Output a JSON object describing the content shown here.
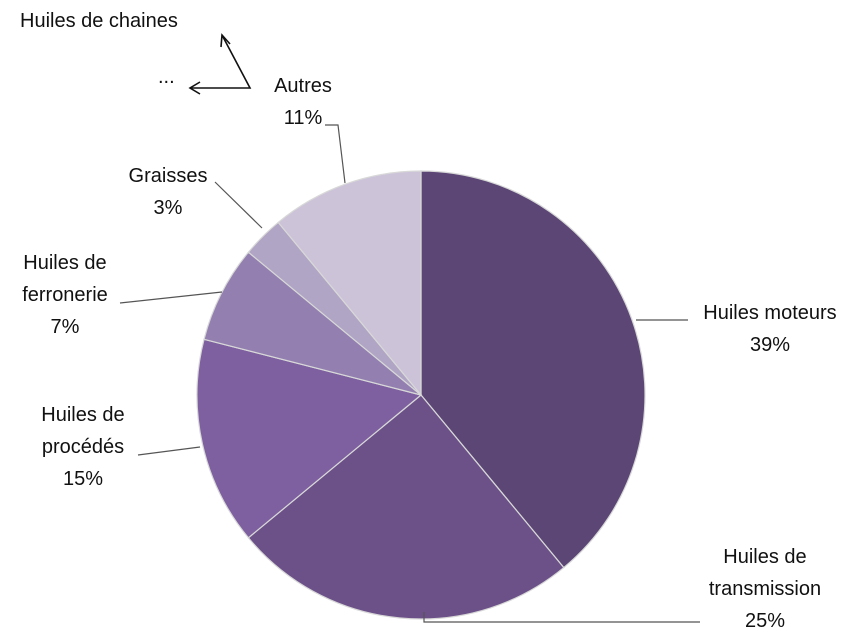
{
  "chart_data": {
    "type": "pie",
    "categories": [
      "Huiles moteurs",
      "Huiles de transmission",
      "Huiles de procédés",
      "Huiles de ferronerie",
      "Graisses",
      "Autres"
    ],
    "values": [
      39,
      25,
      15,
      7,
      3,
      11
    ],
    "value_labels": [
      "39%",
      "25%",
      "15%",
      "7%",
      "3%",
      "11%"
    ],
    "colors": [
      "#5c4675",
      "#6c5189",
      "#7e60a0",
      "#9380b0",
      "#b0a5c4",
      "#ccc3d9"
    ],
    "annotations": [
      "Huiles de chaines",
      "..."
    ]
  }
}
